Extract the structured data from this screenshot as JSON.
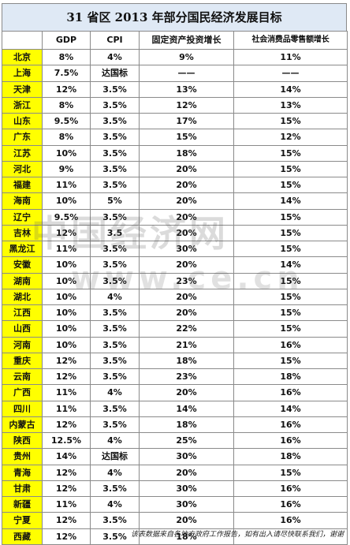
{
  "title": "31 省区 2013 年部分国民经济发展目标",
  "headers": [
    "",
    "GDP",
    "CPI",
    "固定资产投资增长",
    "社会消费品零售额增长"
  ],
  "rows": [
    [
      "北京",
      "8%",
      "4%",
      "9%",
      "11%"
    ],
    [
      "上海",
      "7.5%",
      "达国标",
      "——",
      "——"
    ],
    [
      "天津",
      "12%",
      "3.5%",
      "13%",
      "14%"
    ],
    [
      "浙江",
      "8%",
      "3.5%",
      "12%",
      "13%"
    ],
    [
      "山东",
      "9.5%",
      "3.5%",
      "17%",
      "15%"
    ],
    [
      "广东",
      "8%",
      "3.5%",
      "15%",
      "12%"
    ],
    [
      "江苏",
      "10%",
      "3.5%",
      "18%",
      "15%"
    ],
    [
      "河北",
      "9%",
      "3.5%",
      "20%",
      "15%"
    ],
    [
      "福建",
      "11%",
      "3.5%",
      "20%",
      "15%"
    ],
    [
      "海南",
      "10%",
      "5%",
      "20%",
      "14%"
    ],
    [
      "辽宁",
      "9.5%",
      "3.5%",
      "20%",
      "15%"
    ],
    [
      "吉林",
      "12%",
      "3.5",
      "20%",
      "15%"
    ],
    [
      "黑龙江",
      "11%",
      "3.5%",
      "30%",
      "15%"
    ],
    [
      "安徽",
      "10%",
      "3.5%",
      "20%",
      "14%"
    ],
    [
      "湖南",
      "10%",
      "3.5%",
      "23%",
      "15%"
    ],
    [
      "湖北",
      "10%",
      "4%",
      "20%",
      "15%"
    ],
    [
      "江西",
      "10%",
      "3.5%",
      "20%",
      "15%"
    ],
    [
      "山西",
      "10%",
      "3.5%",
      "22%",
      "15%"
    ],
    [
      "河南",
      "10%",
      "3.5%",
      "21%",
      "16%"
    ],
    [
      "重庆",
      "12%",
      "3.5%",
      "18%",
      "15%"
    ],
    [
      "云南",
      "12%",
      "3.5%",
      "23%",
      "18%"
    ],
    [
      "广西",
      "11%",
      "4%",
      "20%",
      "16%"
    ],
    [
      "四川",
      "11%",
      "3.5%",
      "14%",
      "14%"
    ],
    [
      "内蒙古",
      "12%",
      "3.5%",
      "18%",
      "16%"
    ],
    [
      "陕西",
      "12.5%",
      "4%",
      "25%",
      "16%"
    ],
    [
      "贵州",
      "14%",
      "达国标",
      "30%",
      "18%"
    ],
    [
      "青海",
      "12%",
      "4%",
      "20%",
      "15%"
    ],
    [
      "甘肃",
      "12%",
      "3.5%",
      "30%",
      "16%"
    ],
    [
      "新疆",
      "11%",
      "4%",
      "30%",
      "16%"
    ],
    [
      "宁夏",
      "12%",
      "3.5%",
      "20%",
      "16%"
    ],
    [
      "西藏",
      "12%",
      "3.5%",
      "18%",
      ""
    ]
  ],
  "watermark": "中国经济网",
  "watermark_url": "www.ce.cn",
  "footer": "该表数据来自各地方政府工作报告，如有出入请尽快联系我们，谢谢"
}
